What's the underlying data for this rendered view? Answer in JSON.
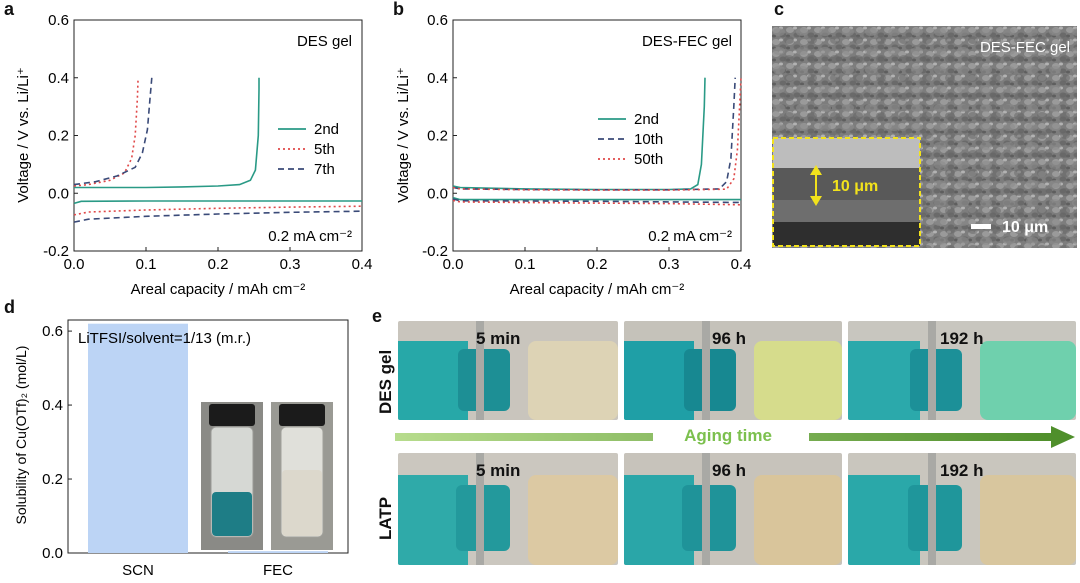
{
  "panels": {
    "a": {
      "letter": "a",
      "inset_title": "DES gel",
      "current_label": "0.2 mA cm⁻²",
      "xlabel": "Areal capacity / mAh cm⁻²",
      "ylabel": "Voltage / V vs. Li/Li⁺"
    },
    "b": {
      "letter": "b",
      "inset_title": "DES-FEC gel",
      "current_label": "0.2 mA cm⁻²",
      "xlabel": "Areal capacity / mAh cm⁻²",
      "ylabel": "Voltage / V vs. Li/Li⁺"
    },
    "c": {
      "letter": "c",
      "title": "DES-FEC gel",
      "thickness_label": "10 μm",
      "scalebar_label": "10 μm",
      "colors": {
        "inset_border": "#f2e21c",
        "inset_text": "#f2e21c"
      }
    },
    "d": {
      "letter": "d",
      "annotation": "LiTFSI/solvent=1/13 (m.r.)",
      "ylabel": "Solubility of Cu(OTf)₂ (mol/L)"
    },
    "e": {
      "letter": "e",
      "row_labels": [
        "DES gel",
        "LATP"
      ],
      "time_labels": [
        "5 min",
        "96 h",
        "192 h"
      ],
      "arrow_label": "Aging time",
      "colors": {
        "arrow": "#6aab3e",
        "arrow_text": "#7cc04e"
      }
    }
  },
  "chart_data": [
    {
      "id": "a",
      "type": "line",
      "xlim": [
        0,
        0.4
      ],
      "ylim": [
        -0.2,
        0.6
      ],
      "xticks": [
        "0.0",
        "0.1",
        "0.2",
        "0.3",
        "0.4"
      ],
      "yticks": [
        "-0.2",
        "0.0",
        "0.2",
        "0.4",
        "0.6"
      ],
      "legend_position": "right",
      "series": [
        {
          "name": "2nd",
          "color": "#2a9a86",
          "dash": "solid",
          "x": [
            0,
            0.01,
            0.05,
            0.1,
            0.15,
            0.2,
            0.23,
            0.245,
            0.252,
            0.256,
            0.257,
            0.257
          ],
          "y": [
            0.02,
            0.02,
            0.02,
            0.02,
            0.022,
            0.025,
            0.03,
            0.045,
            0.08,
            0.2,
            0.36,
            0.4
          ]
        },
        {
          "name": "5th",
          "color": "#e04848",
          "dash": "dot",
          "x": [
            0,
            0.02,
            0.05,
            0.07,
            0.08,
            0.085,
            0.088,
            0.089
          ],
          "y": [
            0.025,
            0.03,
            0.045,
            0.07,
            0.12,
            0.2,
            0.33,
            0.4
          ]
        },
        {
          "name": "7th",
          "color": "#3a4a78",
          "dash": "dash",
          "x": [
            0,
            0.03,
            0.06,
            0.085,
            0.095,
            0.102,
            0.106,
            0.108
          ],
          "y": [
            0.03,
            0.04,
            0.06,
            0.09,
            0.14,
            0.22,
            0.34,
            0.4
          ]
        },
        {
          "name": "",
          "color": "#2a9a86",
          "dash": "solid",
          "x": [
            0,
            0.01,
            0.1,
            0.2,
            0.3,
            0.4
          ],
          "y": [
            -0.035,
            -0.028,
            -0.027,
            -0.027,
            -0.027,
            -0.027
          ]
        },
        {
          "name": "",
          "color": "#e04848",
          "dash": "dot",
          "x": [
            0,
            0.02,
            0.1,
            0.2,
            0.3,
            0.4
          ],
          "y": [
            -0.075,
            -0.065,
            -0.058,
            -0.052,
            -0.048,
            -0.045
          ]
        },
        {
          "name": "",
          "color": "#3a4a78",
          "dash": "dash",
          "x": [
            0,
            0.02,
            0.1,
            0.2,
            0.3,
            0.4
          ],
          "y": [
            -0.1,
            -0.09,
            -0.08,
            -0.072,
            -0.066,
            -0.062
          ]
        }
      ]
    },
    {
      "id": "b",
      "type": "line",
      "xlim": [
        0,
        0.4
      ],
      "ylim": [
        -0.2,
        0.6
      ],
      "xticks": [
        "0.0",
        "0.1",
        "0.2",
        "0.3",
        "0.4"
      ],
      "yticks": [
        "-0.2",
        "0.0",
        "0.2",
        "0.4",
        "0.6"
      ],
      "legend_position": "center",
      "series": [
        {
          "name": "2nd",
          "color": "#2a9a86",
          "dash": "solid",
          "x": [
            0,
            0.01,
            0.1,
            0.2,
            0.3,
            0.33,
            0.34,
            0.345,
            0.349,
            0.35
          ],
          "y": [
            0.025,
            0.02,
            0.015,
            0.013,
            0.013,
            0.015,
            0.03,
            0.1,
            0.3,
            0.4
          ]
        },
        {
          "name": "10th",
          "color": "#3a4a78",
          "dash": "dash",
          "x": [
            0,
            0.01,
            0.1,
            0.2,
            0.3,
            0.37,
            0.38,
            0.386,
            0.39,
            0.392
          ],
          "y": [
            0.02,
            0.015,
            0.013,
            0.012,
            0.012,
            0.015,
            0.04,
            0.12,
            0.3,
            0.4
          ]
        },
        {
          "name": "50th",
          "color": "#e04848",
          "dash": "dot",
          "x": [
            0,
            0.01,
            0.1,
            0.2,
            0.3,
            0.38,
            0.39,
            0.395,
            0.398,
            0.4
          ],
          "y": [
            0.02,
            0.015,
            0.012,
            0.011,
            0.011,
            0.014,
            0.05,
            0.15,
            0.3,
            0.4
          ]
        },
        {
          "name": "",
          "color": "#2a9a86",
          "dash": "solid",
          "x": [
            0,
            0.01,
            0.1,
            0.2,
            0.3,
            0.4
          ],
          "y": [
            -0.015,
            -0.022,
            -0.022,
            -0.022,
            -0.022,
            -0.022
          ]
        },
        {
          "name": "",
          "color": "#3a4a78",
          "dash": "dash",
          "x": [
            0,
            0.01,
            0.1,
            0.2,
            0.3,
            0.4
          ],
          "y": [
            -0.02,
            -0.026,
            -0.027,
            -0.028,
            -0.03,
            -0.032
          ]
        },
        {
          "name": "",
          "color": "#e04848",
          "dash": "dot",
          "x": [
            0,
            0.01,
            0.1,
            0.2,
            0.3,
            0.4
          ],
          "y": [
            -0.025,
            -0.03,
            -0.032,
            -0.034,
            -0.036,
            -0.04
          ]
        }
      ]
    },
    {
      "id": "d",
      "type": "bar",
      "categories": [
        "SCN",
        "FEC"
      ],
      "values": [
        0.62,
        0.005
      ],
      "ylim": [
        0,
        0.6
      ],
      "yticks": [
        "0.0",
        "0.2",
        "0.4",
        "0.6"
      ],
      "color": "#bcd4f5"
    }
  ]
}
